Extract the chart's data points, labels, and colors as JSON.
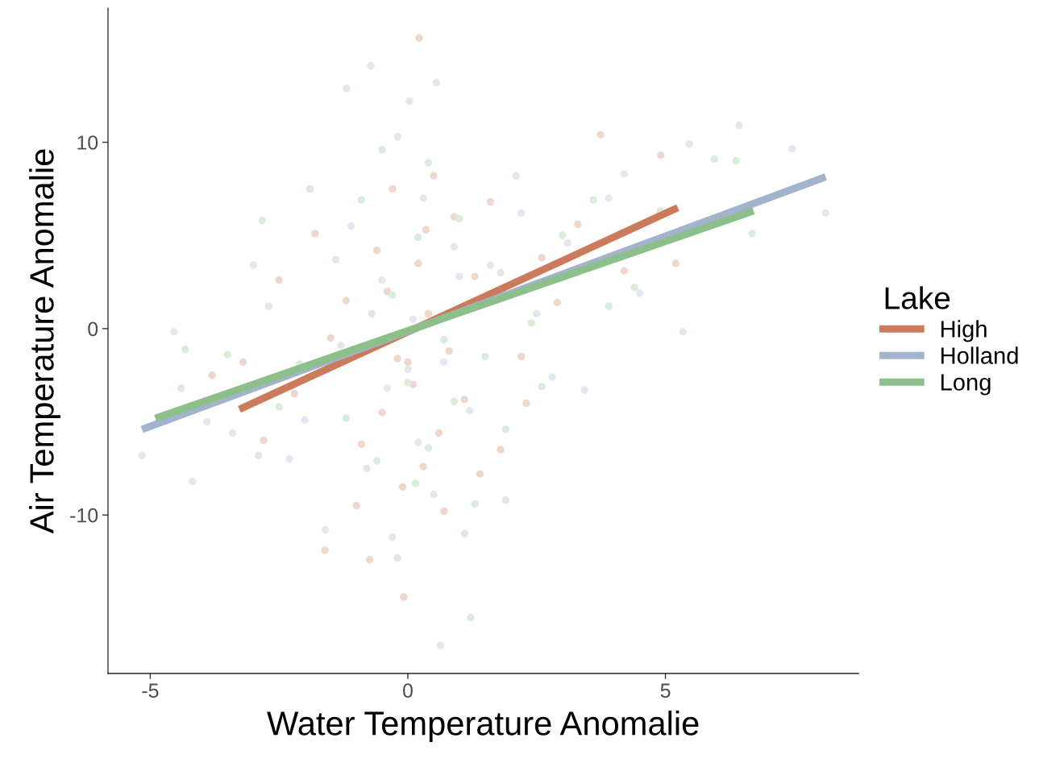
{
  "chart_data": {
    "type": "scatter",
    "xlabel": "Water Temperature Anomalie",
    "ylabel": "Air Temperature Anomalie",
    "legend_title": "Lake",
    "legend": "right",
    "grid": false,
    "xlim": [
      -5.82,
      8.75
    ],
    "xticks": [
      -5,
      0,
      5
    ],
    "ylim": [
      -18.5,
      17.2
    ],
    "yticks": [
      -10,
      0,
      10
    ],
    "series": [
      {
        "marker": "circle",
        "color": "#f0d7ce",
        "x": [
          0.22,
          3.74,
          4.91,
          -1.61,
          -0.74,
          -0.08,
          0.5,
          -0.3,
          0.9,
          -0.6,
          0.2,
          1.3,
          -1.2,
          0.4,
          -0.2,
          0.8,
          -1.5,
          0.1,
          1.1,
          -0.5,
          0.6,
          -0.9,
          0.3,
          -0.1,
          0.7,
          1.8,
          2.3,
          2.9,
          3.3,
          4.2,
          5.2,
          -2.2,
          -2.8,
          -3.2,
          -1.8,
          -2.5,
          1.6,
          2.2,
          -0.4,
          0.0,
          0.35,
          -1.0,
          1.4,
          2.6,
          -3.8
        ],
        "values": [
          15.6,
          10.4,
          9.3,
          -11.9,
          -12.4,
          -14.4,
          8.2,
          7.5,
          6.0,
          4.2,
          3.5,
          2.8,
          1.5,
          0.8,
          -1.6,
          -1.2,
          -0.5,
          -3.0,
          -3.8,
          -4.5,
          -5.6,
          -6.2,
          -7.4,
          -8.5,
          -9.8,
          -6.5,
          -4.0,
          1.4,
          5.6,
          3.1,
          3.5,
          -3.5,
          -6.0,
          -1.8,
          5.1,
          2.6,
          6.8,
          -1.5,
          2.0,
          -1.8,
          5.3,
          -9.5,
          -7.8,
          3.8,
          -2.5
        ]
      },
      {
        "marker": "circle",
        "color": "#e3e8f0",
        "x": [
          -0.72,
          0.55,
          5.46,
          6.43,
          7.46,
          8.11,
          3.43,
          -4.54,
          -5.16,
          -4.18,
          0.63,
          -0.2,
          0.3,
          -1.1,
          0.9,
          -0.5,
          1.6,
          0.1,
          -1.3,
          0.7,
          -0.4,
          1.2,
          -2.0,
          0.2,
          -0.8,
          0.5,
          -0.3,
          2.5,
          3.1,
          3.9,
          4.5,
          -2.7,
          -3.4,
          -2.3,
          -3.0,
          1.9,
          2.2,
          -1.6,
          0.0,
          1.0,
          4.2,
          -3.9,
          2.8
        ],
        "values": [
          14.1,
          13.2,
          9.9,
          10.9,
          9.65,
          6.2,
          -3.3,
          -0.17,
          -6.8,
          -8.2,
          -17.0,
          10.3,
          7.0,
          5.5,
          4.4,
          2.6,
          3.4,
          0.5,
          -0.9,
          -1.8,
          -3.2,
          -4.4,
          -4.9,
          -6.1,
          -7.5,
          -8.9,
          -11.2,
          0.8,
          4.6,
          7.0,
          1.9,
          1.2,
          -5.6,
          -7.0,
          3.4,
          -9.2,
          6.2,
          -10.8,
          -2.2,
          2.8,
          8.3,
          -5.0,
          -2.6
        ]
      },
      {
        "marker": "circle",
        "color": "#dcecdc",
        "x": [
          -1.19,
          0.03,
          5.95,
          6.37,
          6.68,
          5.34,
          -4.32,
          -2.83,
          1.22,
          1.1,
          -0.5,
          0.4,
          -0.9,
          1.0,
          0.2,
          -1.4,
          1.8,
          -0.3,
          0.7,
          -0.7,
          1.5,
          -2.1,
          0.0,
          0.9,
          -1.2,
          0.4,
          -0.6,
          0.15,
          1.3,
          2.4,
          3.0,
          3.6,
          4.4,
          2.6,
          -2.5,
          -3.5,
          -4.4,
          -2.9,
          1.9,
          2.1,
          -1.9,
          4.9,
          3.9,
          -0.2
        ],
        "values": [
          12.9,
          12.2,
          9.1,
          9.0,
          5.1,
          -0.17,
          -1.1,
          5.8,
          -15.5,
          -11.0,
          9.6,
          8.9,
          6.9,
          5.9,
          4.9,
          3.7,
          3.0,
          1.8,
          -0.6,
          0.8,
          -1.5,
          -1.9,
          -2.9,
          -3.9,
          -4.8,
          -6.4,
          -7.1,
          -8.3,
          -9.4,
          0.3,
          5.0,
          6.9,
          2.2,
          -3.1,
          -4.2,
          -1.4,
          -3.2,
          -6.8,
          -5.4,
          8.2,
          7.5,
          6.3,
          1.2,
          -12.3
        ]
      },
      {
        "type": "line",
        "name": "High",
        "color": "#cc7a5c",
        "x": [
          -3.27,
          5.24
        ],
        "values": [
          -4.33,
          6.49
        ]
      },
      {
        "type": "line",
        "name": "Holland",
        "color": "#a3b3cc",
        "x": [
          -5.16,
          8.11
        ],
        "values": [
          -5.41,
          8.14
        ]
      },
      {
        "type": "line",
        "name": "Long",
        "color": "#8cbf8a",
        "x": [
          -4.9,
          6.71
        ],
        "values": [
          -4.81,
          6.32
        ]
      }
    ]
  }
}
